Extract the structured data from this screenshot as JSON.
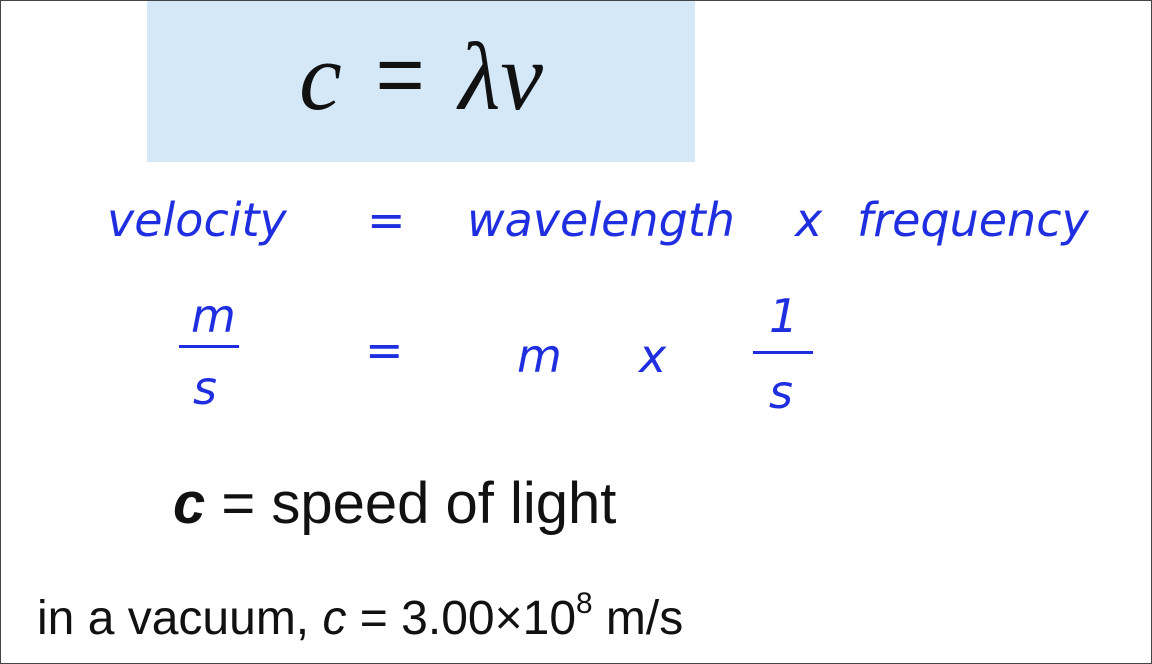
{
  "formula": {
    "c": "c",
    "equals": "=",
    "lambda": "λ",
    "nu": "v"
  },
  "word_equation": {
    "velocity": "velocity",
    "equals": "=",
    "wavelength": "wavelength",
    "times": "x",
    "frequency": "frequency"
  },
  "unit_equation": {
    "lhs_numerator": "m",
    "lhs_denominator": "s",
    "equals": "=",
    "m": "m",
    "times": "x",
    "rhs_numerator": "1",
    "rhs_denominator": "s"
  },
  "definition": {
    "symbol": "c",
    "text": " = speed of light"
  },
  "vacuum": {
    "prefix": "in a vacuum, ",
    "symbol": "c",
    "value": " = 3.00×10",
    "exponent": "8",
    "unit": " m/s"
  },
  "colors": {
    "formula_box": "#d5e8f8",
    "handwriting": "#1f2fe0",
    "text": "#111111"
  }
}
